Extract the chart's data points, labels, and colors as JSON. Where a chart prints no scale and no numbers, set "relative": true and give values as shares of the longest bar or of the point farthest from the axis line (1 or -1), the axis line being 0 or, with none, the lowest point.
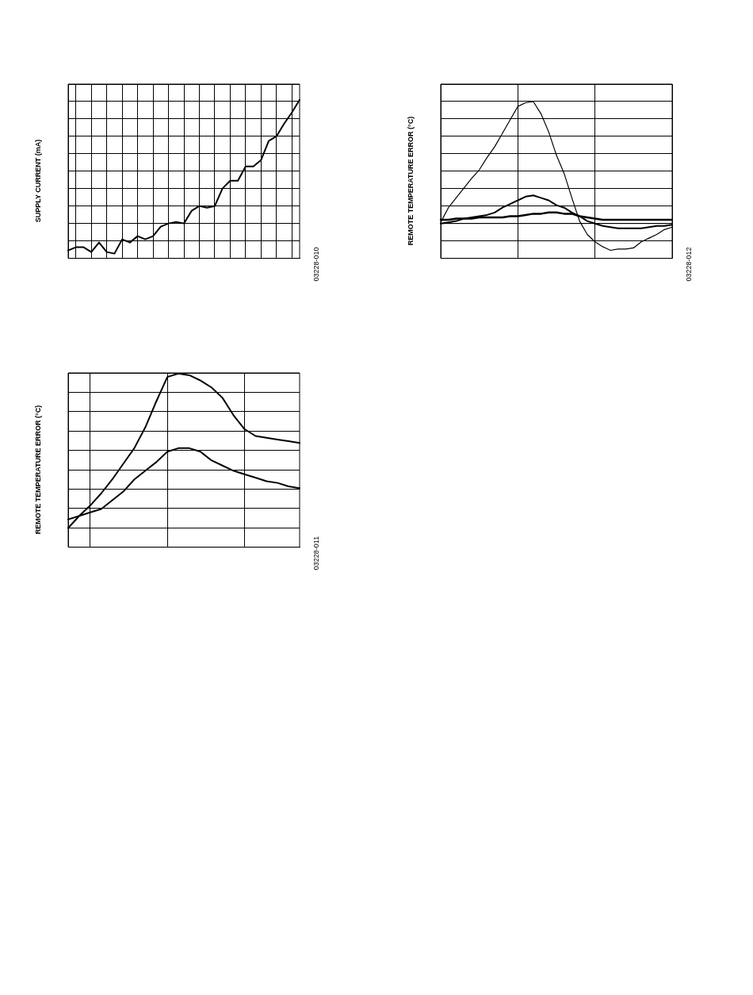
{
  "chart_data": [
    {
      "type": "line",
      "ylabel": "SUPPLY CURRENT (mA)",
      "relative": true,
      "grid": true,
      "annotations": [
        "03228-010"
      ],
      "categories": [
        null,
        null,
        null,
        null,
        null,
        null,
        null,
        null,
        null,
        null,
        null,
        null,
        null,
        null,
        null,
        null,
        null,
        null,
        null,
        null,
        null,
        null,
        null,
        null,
        null,
        null,
        null,
        null,
        null,
        null,
        null
      ],
      "series": [
        {
          "color": "#000000",
          "values": [
            0.05,
            0.07,
            0.07,
            0.04,
            0.1,
            0.04,
            0.03,
            0.12,
            0.1,
            0.14,
            0.12,
            0.14,
            0.2,
            0.22,
            0.23,
            0.22,
            0.3,
            0.33,
            0.32,
            0.33,
            0.44,
            0.49,
            0.49,
            0.58,
            0.58,
            0.62,
            0.74,
            0.77,
            0.85,
            0.92,
            1
          ]
        }
      ]
    },
    {
      "type": "line",
      "ylabel": "REMOTE TEMPERATURE ERROR (°C)",
      "relative": true,
      "grid": true,
      "annotations": [
        "03228-012"
      ],
      "ref_lines": [
        {
          "axis": "y",
          "value": 0,
          "color": "#000000"
        }
      ],
      "categories": [
        null,
        null,
        null,
        null,
        null,
        null,
        null,
        null,
        null,
        null,
        null,
        null,
        null,
        null,
        null,
        null,
        null,
        null,
        null,
        null,
        null,
        null,
        null,
        null,
        null,
        null,
        null,
        null,
        null,
        null,
        null
      ],
      "series": [
        {
          "color": "#000000",
          "values": [
            0.01,
            0.13,
            0.21,
            0.29,
            0.37,
            0.44,
            0.54,
            0.63,
            0.74,
            0.85,
            0.96,
            0.99,
            1,
            0.9,
            0.75,
            0.56,
            0.41,
            0.21,
            0.02,
            -0.09,
            -0.15,
            -0.19,
            -0.22,
            -0.21,
            -0.21,
            -0.2,
            -0.15,
            -0.12,
            -0.09,
            -0.05,
            -0.03
          ]
        },
        {
          "color": "#000000",
          "values": [
            0,
            0.01,
            0.02,
            0.04,
            0.05,
            0.06,
            0.07,
            0.09,
            0.13,
            0.16,
            0.19,
            0.22,
            0.23,
            0.21,
            0.19,
            0.15,
            0.13,
            0.09,
            0.06,
            0.02,
            0,
            -0.02,
            -0.03,
            -0.04,
            -0.04,
            -0.04,
            -0.04,
            -0.03,
            -0.02,
            -0.02,
            -0.01
          ]
        },
        {
          "color": "#000000",
          "values": [
            0.03,
            0.03,
            0.04,
            0.04,
            0.04,
            0.05,
            0.05,
            0.05,
            0.05,
            0.06,
            0.06,
            0.07,
            0.08,
            0.08,
            0.09,
            0.09,
            0.08,
            0.08,
            0.06,
            0.05,
            0.04,
            0.03,
            0.03,
            0.03,
            0.03,
            0.03,
            0.03,
            0.03,
            0.03,
            0.03,
            0.03
          ]
        }
      ]
    },
    {
      "type": "line",
      "ylabel": "REMOTE TEMPERATURE ERROR (°C)",
      "relative": true,
      "grid": true,
      "annotations": [
        "03228-011"
      ],
      "categories": [
        null,
        null,
        null,
        null,
        null,
        null,
        null,
        null,
        null,
        null,
        null,
        null,
        null,
        null,
        null,
        null,
        null,
        null,
        null,
        null,
        null,
        null
      ],
      "series": [
        {
          "color": "#000000",
          "values": [
            0.11,
            0.18,
            0.24,
            0.31,
            0.39,
            0.48,
            0.57,
            0.69,
            0.84,
            0.98,
            1,
            0.99,
            0.96,
            0.92,
            0.86,
            0.76,
            0.68,
            0.64,
            0.63,
            0.62,
            0.61,
            0.6
          ]
        },
        {
          "color": "#000000",
          "values": [
            0.16,
            0.18,
            0.2,
            0.22,
            0.27,
            0.32,
            0.39,
            0.44,
            0.49,
            0.55,
            0.57,
            0.57,
            0.55,
            0.5,
            0.47,
            0.44,
            0.42,
            0.4,
            0.38,
            0.37,
            0.35,
            0.34
          ]
        }
      ]
    }
  ]
}
